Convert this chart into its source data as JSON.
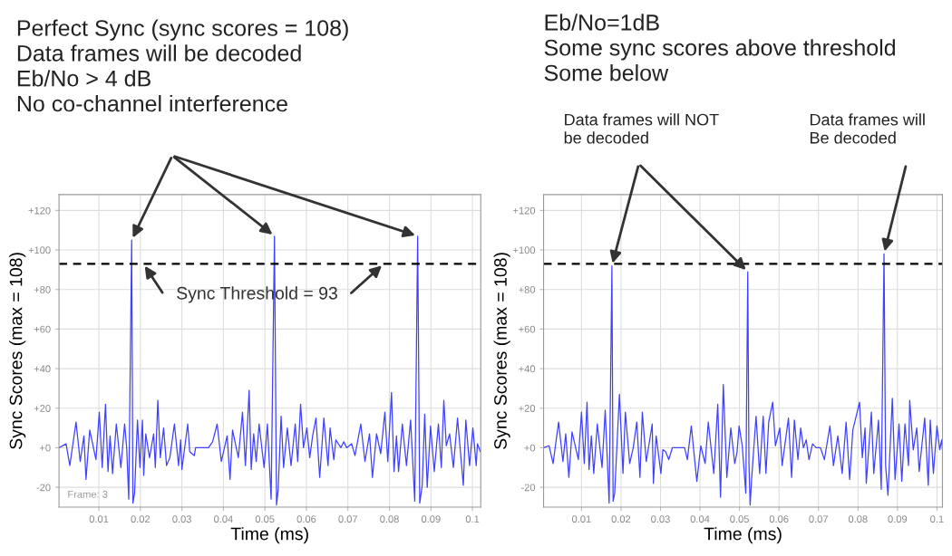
{
  "chart_data": [
    {
      "type": "line",
      "xlabel": "Time (ms)",
      "ylabel": "Sync Scores (max = 108)",
      "xlim": [
        0.0004,
        0.102
      ],
      "ylim": [
        -30,
        128
      ],
      "xticks": [
        0.01,
        0.02,
        0.03,
        0.04,
        0.05,
        0.06,
        0.07,
        0.08,
        0.09,
        0.1
      ],
      "yticks": [
        {
          "value": -20,
          "label": "-20"
        },
        {
          "value": 0,
          "label": "+0"
        },
        {
          "value": 20,
          "label": "+20"
        },
        {
          "value": 40,
          "label": "+40"
        },
        {
          "value": 60,
          "label": "+60"
        },
        {
          "value": 80,
          "label": "+80"
        },
        {
          "value": 100,
          "label": "+100"
        },
        {
          "value": 120,
          "label": "+120"
        }
      ],
      "grid": true,
      "ref_lines": [
        {
          "axis": "y",
          "value": 93,
          "label": "Sync Threshold = 93",
          "color": "#000000",
          "line_style": "dashed"
        }
      ],
      "annotations": [
        "Perfect Sync (sync scores = 108)\nData frames will be decoded\nEb/No > 4 dB\nNo co-channel interference",
        "Frame: 3"
      ],
      "series": [
        {
          "color": "#4040ff",
          "x": [
            0.0004,
            0.0021,
            0.003,
            0.0045,
            0.0055,
            0.0064,
            0.0069,
            0.0078,
            0.0093,
            0.0101,
            0.0108,
            0.0116,
            0.0122,
            0.0127,
            0.0133,
            0.0142,
            0.0153,
            0.0162,
            0.0167,
            0.0172,
            0.0179,
            0.0182,
            0.0186,
            0.0193,
            0.0199,
            0.0205,
            0.0208,
            0.0213,
            0.0222,
            0.0232,
            0.0236,
            0.0242,
            0.0248,
            0.0256,
            0.0263,
            0.0271,
            0.0282,
            0.0292,
            0.0297,
            0.03,
            0.0314,
            0.0319,
            0.033,
            0.0333,
            0.0364,
            0.0374,
            0.0385,
            0.0395,
            0.0409,
            0.0416,
            0.0422,
            0.0436,
            0.0446,
            0.0453,
            0.0462,
            0.0467,
            0.0473,
            0.0479,
            0.0486,
            0.0498,
            0.0506,
            0.0515,
            0.0523,
            0.0528,
            0.0532,
            0.0539,
            0.0545,
            0.0554,
            0.0563,
            0.0573,
            0.0579,
            0.0586,
            0.0593,
            0.0601,
            0.0608,
            0.0615,
            0.0623,
            0.0632,
            0.0642,
            0.0652,
            0.0657,
            0.0666,
            0.0671,
            0.0683,
            0.069,
            0.0697,
            0.0709,
            0.0717,
            0.0731,
            0.0741,
            0.0752,
            0.0759,
            0.0769,
            0.0779,
            0.0789,
            0.0796,
            0.0805,
            0.0811,
            0.0817,
            0.0822,
            0.0831,
            0.0841,
            0.0851,
            0.0861,
            0.0868,
            0.0873,
            0.0879,
            0.0885,
            0.0891,
            0.0899,
            0.0908,
            0.0918,
            0.0925,
            0.0931,
            0.0937,
            0.0945,
            0.0954,
            0.0964,
            0.0978,
            0.0984,
            0.0993,
            0.1001,
            0.1009,
            0.1012,
            0.1019
          ],
          "values": [
            0,
            2,
            -9,
            13,
            -7,
            6,
            -16,
            9,
            -6,
            18,
            -10,
            22,
            -12,
            6,
            -13,
            12,
            -10,
            12,
            0,
            -26,
            105,
            -28,
            -23,
            14,
            -10,
            14,
            -14,
            7,
            -5,
            7,
            -10,
            24,
            -5,
            10,
            -9,
            -5,
            12,
            -9,
            4,
            -11,
            12,
            -2,
            -4,
            0,
            0,
            3,
            12,
            -7,
            6,
            -16,
            9,
            -5,
            18,
            -9,
            29,
            -11,
            7,
            -7,
            12,
            -10,
            12,
            -26,
            107,
            -29,
            -21,
            16,
            -10,
            10,
            -9,
            12,
            -7,
            22,
            0,
            10,
            -5,
            6,
            15,
            -15,
            15,
            -9,
            10,
            -6,
            4,
            0,
            3,
            0,
            2,
            -4,
            12,
            -7,
            7,
            -15,
            7,
            -3,
            18,
            -7,
            28,
            -12,
            6,
            -12,
            12,
            -9,
            14,
            -27,
            107,
            -28,
            -19,
            17,
            -20,
            11,
            -12,
            12,
            -10,
            24,
            1,
            7,
            -10,
            15,
            -19,
            14,
            -9,
            10,
            -9,
            2,
            -2
          ]
        }
      ]
    },
    {
      "type": "line",
      "title": "Eb/No=1dB\nSome sync scores above threshold\nSome below",
      "xlabel": "Time (ms)",
      "ylabel": "Sync Scores (max = 108)",
      "xlim": [
        0.0004,
        0.1014
      ],
      "ylim": [
        -30,
        128
      ],
      "xticks": [
        0.01,
        0.02,
        0.03,
        0.04,
        0.05,
        0.06,
        0.07,
        0.08,
        0.09,
        0.1
      ],
      "yticks": [
        {
          "value": -20,
          "label": "-20"
        },
        {
          "value": 0,
          "label": "+0"
        },
        {
          "value": 20,
          "label": "+20"
        },
        {
          "value": 40,
          "label": "+40"
        },
        {
          "value": 60,
          "label": "+60"
        },
        {
          "value": 80,
          "label": "+80"
        },
        {
          "value": 100,
          "label": "+100"
        },
        {
          "value": 120,
          "label": "+120"
        }
      ],
      "grid": true,
      "ref_lines": [
        {
          "axis": "y",
          "value": 93,
          "color": "#000000",
          "line_style": "dashed"
        }
      ],
      "annotations": [
        "Data frames will NOT\nbe decoded",
        "Data frames will\nBe decoded"
      ],
      "series": [
        {
          "color": "#4040ff",
          "x": [
            0.0004,
            0.0018,
            0.0028,
            0.0042,
            0.0053,
            0.006,
            0.0068,
            0.0076,
            0.0092,
            0.01,
            0.0107,
            0.0114,
            0.0119,
            0.0125,
            0.0131,
            0.014,
            0.0152,
            0.016,
            0.017,
            0.0177,
            0.018,
            0.0184,
            0.0196,
            0.0205,
            0.0211,
            0.0222,
            0.0231,
            0.024,
            0.0248,
            0.0254,
            0.0264,
            0.0279,
            0.0282,
            0.0289,
            0.0301,
            0.0306,
            0.0313,
            0.0321,
            0.033,
            0.0361,
            0.0368,
            0.0378,
            0.0392,
            0.0402,
            0.0413,
            0.0421,
            0.0435,
            0.0445,
            0.0452,
            0.0459,
            0.0468,
            0.0478,
            0.0488,
            0.0494,
            0.0499,
            0.0507,
            0.0516,
            0.0521,
            0.0524,
            0.0527,
            0.0531,
            0.0542,
            0.0551,
            0.056,
            0.0567,
            0.0574,
            0.0584,
            0.0591,
            0.0602,
            0.0608,
            0.0624,
            0.0632,
            0.0639,
            0.0648,
            0.0655,
            0.0662,
            0.0669,
            0.0676,
            0.0685,
            0.0694,
            0.0705,
            0.0715,
            0.0729,
            0.0738,
            0.0749,
            0.076,
            0.077,
            0.0779,
            0.0787,
            0.0804,
            0.0811,
            0.0818,
            0.0821,
            0.0834,
            0.084,
            0.0852,
            0.0859,
            0.0866,
            0.087,
            0.0876,
            0.0887,
            0.0894,
            0.0904,
            0.0911,
            0.0919,
            0.0928,
            0.0931,
            0.094,
            0.0949,
            0.0955,
            0.0969,
            0.0978,
            0.0983,
            0.0991,
            0.1,
            0.1007,
            0.1012,
            0.1014
          ],
          "values": [
            0,
            1,
            -8,
            13,
            -7,
            7,
            -15,
            8,
            -6,
            18,
            -8,
            23,
            -11,
            6,
            -13,
            12,
            -10,
            19,
            -28,
            92,
            -27,
            -23,
            27,
            -13,
            18,
            -8,
            0,
            13,
            -15,
            18,
            -7,
            12,
            -18,
            6,
            -13,
            -1,
            -2,
            -6,
            0,
            0,
            -6,
            11,
            -17,
            1,
            -8,
            13,
            -13,
            22,
            -25,
            32,
            -15,
            10,
            -8,
            -2,
            11,
            1,
            -23,
            89,
            -8,
            -29,
            -15,
            16,
            -13,
            16,
            -13,
            13,
            23,
            1,
            10,
            -9,
            15,
            -15,
            14,
            -6,
            10,
            0,
            4,
            -6,
            2,
            0,
            0,
            -6,
            11,
            -9,
            6,
            -13,
            13,
            -16,
            9,
            23,
            -5,
            10,
            -18,
            18,
            -13,
            14,
            -21,
            98,
            -9,
            -24,
            25,
            -16,
            12,
            -17,
            12,
            -9,
            24,
            -1,
            10,
            -12,
            15,
            -19,
            14,
            -13,
            11,
            -1,
            4,
            -1
          ]
        }
      ]
    }
  ]
}
